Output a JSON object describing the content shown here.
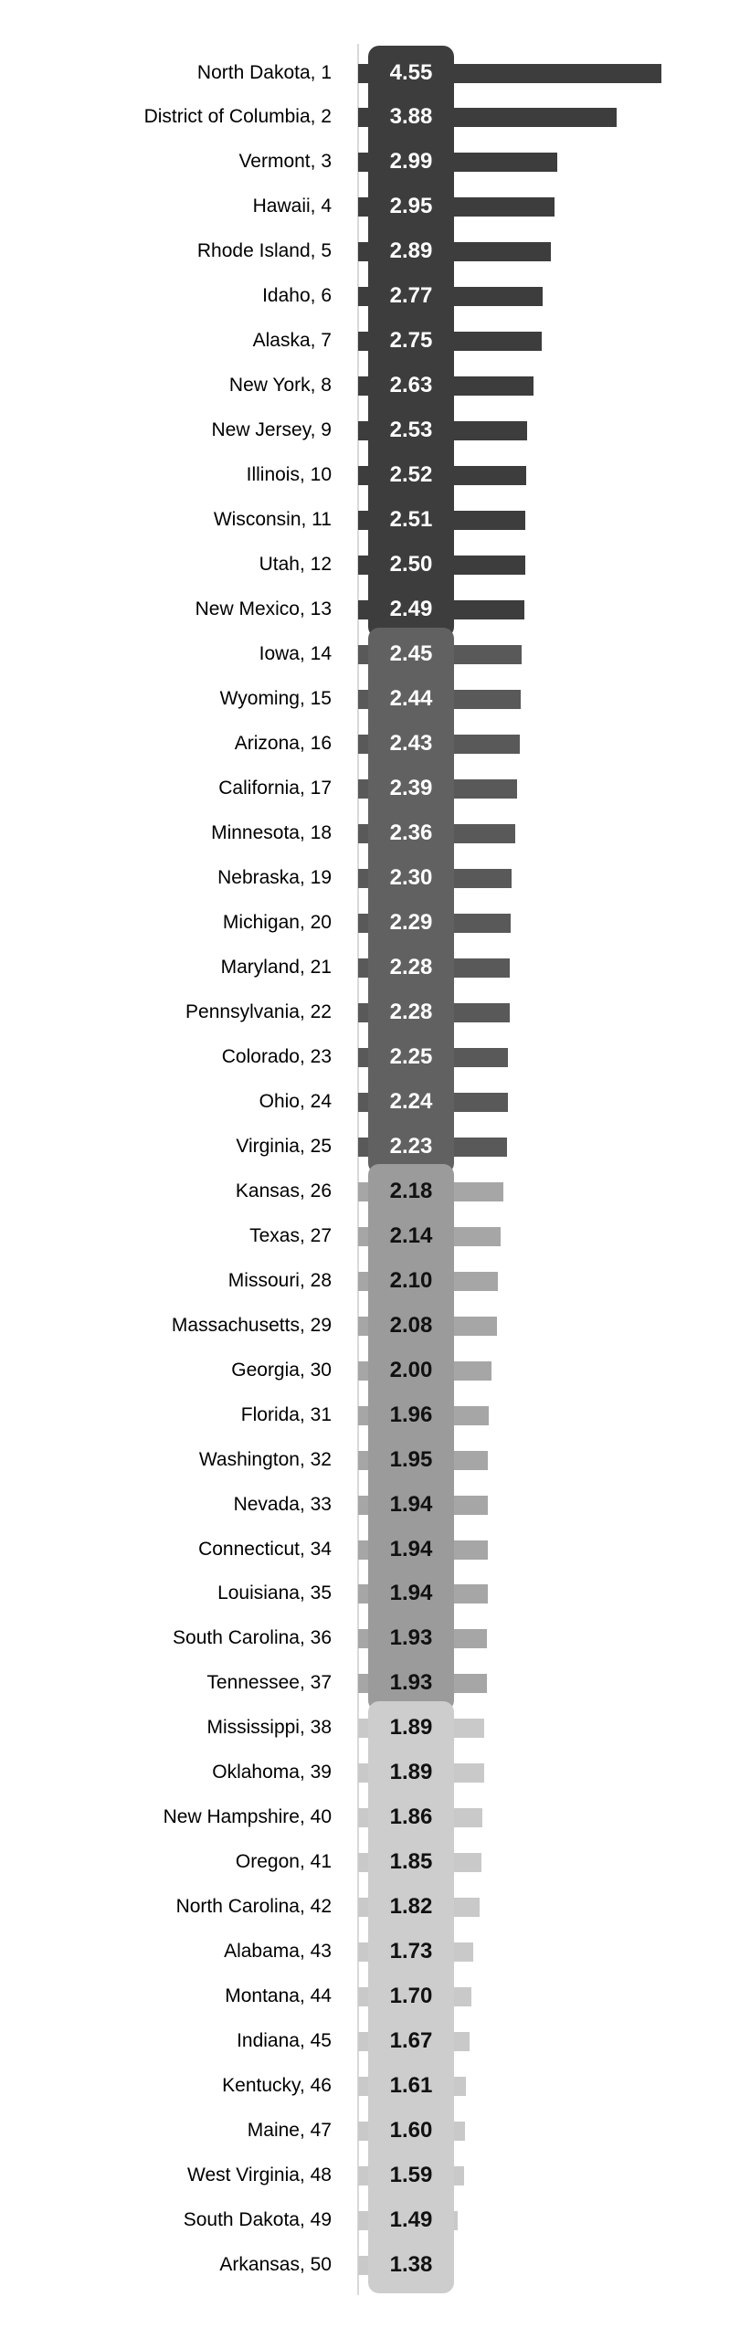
{
  "chart_data": {
    "type": "bar",
    "orientation": "horizontal",
    "title": "",
    "xlabel": "",
    "ylabel": "",
    "xlim": [
      0,
      4.6
    ],
    "grid": false,
    "legend": "none",
    "background": "#ffffff",
    "axis_line_color": "#d9d9d9",
    "rows": [
      {
        "state": "North Dakota",
        "rank": 1,
        "value": 4.55,
        "display": "4.55"
      },
      {
        "state": "District of Columbia",
        "rank": 2,
        "value": 3.88,
        "display": "3.88"
      },
      {
        "state": "Vermont",
        "rank": 3,
        "value": 2.99,
        "display": "2.99"
      },
      {
        "state": "Hawaii",
        "rank": 4,
        "value": 2.95,
        "display": "2.95"
      },
      {
        "state": "Rhode Island",
        "rank": 5,
        "value": 2.89,
        "display": "2.89"
      },
      {
        "state": "Idaho",
        "rank": 6,
        "value": 2.77,
        "display": "2.77"
      },
      {
        "state": "Alaska",
        "rank": 7,
        "value": 2.75,
        "display": "2.75"
      },
      {
        "state": "New York",
        "rank": 8,
        "value": 2.63,
        "display": "2.63"
      },
      {
        "state": "New Jersey",
        "rank": 9,
        "value": 2.53,
        "display": "2.53"
      },
      {
        "state": "Illinois",
        "rank": 10,
        "value": 2.52,
        "display": "2.52"
      },
      {
        "state": "Wisconsin",
        "rank": 11,
        "value": 2.51,
        "display": "2.51"
      },
      {
        "state": "Utah",
        "rank": 12,
        "value": 2.5,
        "display": "2.50"
      },
      {
        "state": "New Mexico",
        "rank": 13,
        "value": 2.49,
        "display": "2.49"
      },
      {
        "state": "Iowa",
        "rank": 14,
        "value": 2.45,
        "display": "2.45"
      },
      {
        "state": "Wyoming",
        "rank": 15,
        "value": 2.44,
        "display": "2.44"
      },
      {
        "state": "Arizona",
        "rank": 16,
        "value": 2.43,
        "display": "2.43"
      },
      {
        "state": "California",
        "rank": 17,
        "value": 2.39,
        "display": "2.39"
      },
      {
        "state": "Minnesota",
        "rank": 18,
        "value": 2.36,
        "display": "2.36"
      },
      {
        "state": "Nebraska",
        "rank": 19,
        "value": 2.3,
        "display": "2.30"
      },
      {
        "state": "Michigan",
        "rank": 20,
        "value": 2.29,
        "display": "2.29"
      },
      {
        "state": "Maryland",
        "rank": 21,
        "value": 2.28,
        "display": "2.28"
      },
      {
        "state": "Pennsylvania",
        "rank": 22,
        "value": 2.28,
        "display": "2.28"
      },
      {
        "state": "Colorado",
        "rank": 23,
        "value": 2.25,
        "display": "2.25"
      },
      {
        "state": "Ohio",
        "rank": 24,
        "value": 2.24,
        "display": "2.24"
      },
      {
        "state": "Virginia",
        "rank": 25,
        "value": 2.23,
        "display": "2.23"
      },
      {
        "state": "Kansas",
        "rank": 26,
        "value": 2.18,
        "display": "2.18"
      },
      {
        "state": "Texas",
        "rank": 27,
        "value": 2.14,
        "display": "2.14"
      },
      {
        "state": "Missouri",
        "rank": 28,
        "value": 2.1,
        "display": "2.10"
      },
      {
        "state": "Massachusetts",
        "rank": 29,
        "value": 2.08,
        "display": "2.08"
      },
      {
        "state": "Georgia",
        "rank": 30,
        "value": 2.0,
        "display": "2.00"
      },
      {
        "state": "Florida",
        "rank": 31,
        "value": 1.96,
        "display": "1.96"
      },
      {
        "state": "Washington",
        "rank": 32,
        "value": 1.95,
        "display": "1.95"
      },
      {
        "state": "Nevada",
        "rank": 33,
        "value": 1.94,
        "display": "1.94"
      },
      {
        "state": "Connecticut",
        "rank": 34,
        "value": 1.94,
        "display": "1.94"
      },
      {
        "state": "Louisiana",
        "rank": 35,
        "value": 1.94,
        "display": "1.94"
      },
      {
        "state": "South Carolina",
        "rank": 36,
        "value": 1.93,
        "display": "1.93"
      },
      {
        "state": "Tennessee",
        "rank": 37,
        "value": 1.93,
        "display": "1.93"
      },
      {
        "state": "Mississippi",
        "rank": 38,
        "value": 1.89,
        "display": "1.89"
      },
      {
        "state": "Oklahoma",
        "rank": 39,
        "value": 1.89,
        "display": "1.89"
      },
      {
        "state": "New Hampshire",
        "rank": 40,
        "value": 1.86,
        "display": "1.86"
      },
      {
        "state": "Oregon",
        "rank": 41,
        "value": 1.85,
        "display": "1.85"
      },
      {
        "state": "North Carolina",
        "rank": 42,
        "value": 1.82,
        "display": "1.82"
      },
      {
        "state": "Alabama",
        "rank": 43,
        "value": 1.73,
        "display": "1.73"
      },
      {
        "state": "Montana",
        "rank": 44,
        "value": 1.7,
        "display": "1.70"
      },
      {
        "state": "Indiana",
        "rank": 45,
        "value": 1.67,
        "display": "1.67"
      },
      {
        "state": "Kentucky",
        "rank": 46,
        "value": 1.61,
        "display": "1.61"
      },
      {
        "state": "Maine",
        "rank": 47,
        "value": 1.6,
        "display": "1.60"
      },
      {
        "state": "West Virginia",
        "rank": 48,
        "value": 1.59,
        "display": "1.59"
      },
      {
        "state": "South Dakota",
        "rank": 49,
        "value": 1.49,
        "display": "1.49"
      },
      {
        "state": "Arkansas",
        "rank": 50,
        "value": 1.38,
        "display": "1.38"
      }
    ],
    "tiers": [
      {
        "from_rank": 1,
        "to_rank": 13,
        "pill_color": "#3d3d3d",
        "bar_color": "#3d3d3d",
        "text_color": "#ffffff"
      },
      {
        "from_rank": 14,
        "to_rank": 25,
        "pill_color": "#616161",
        "bar_color": "#595959",
        "text_color": "#ffffff"
      },
      {
        "from_rank": 26,
        "to_rank": 37,
        "pill_color": "#9b9b9b",
        "bar_color": "#a6a6a6",
        "text_color": "#111111"
      },
      {
        "from_rank": 38,
        "to_rank": 50,
        "pill_color": "#cdcdcd",
        "bar_color": "#c9c9c9",
        "text_color": "#111111"
      }
    ],
    "label_format": "State, rank"
  }
}
